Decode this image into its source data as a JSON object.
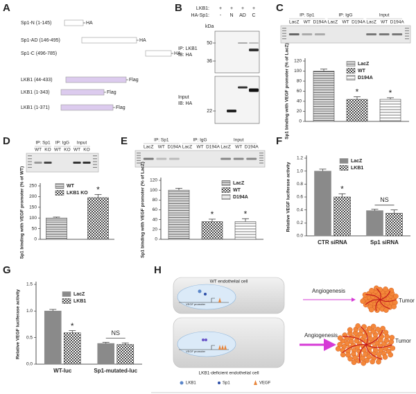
{
  "panel_labels": [
    "A",
    "B",
    "C",
    "D",
    "E",
    "F",
    "G",
    "H"
  ],
  "panel_a": {
    "constructs": [
      {
        "label": "Sp1-N (1-145)",
        "tag": "HA"
      },
      {
        "label": "Sp1-AD (146-495)",
        "tag": "HA"
      },
      {
        "label": "Sp1-C (496-785)",
        "tag": "HA"
      },
      {
        "label": "LKB1 (44-433)",
        "tag": "Flag"
      },
      {
        "label": "LKB1 (1-343)",
        "tag": "Flag"
      },
      {
        "label": "LKB1 (1-371)",
        "tag": "Flag"
      }
    ]
  },
  "panel_b": {
    "row1_label": "LKB1:",
    "row1": [
      "+",
      "+",
      "+",
      "+"
    ],
    "row2_label": "HA-Sp1:",
    "row2": [
      "-",
      "N",
      "AD",
      "C"
    ],
    "kda": "kDa",
    "top_markers": [
      50,
      36
    ],
    "top_label": [
      "IP: LKB1",
      "IB: HA"
    ],
    "bottom_markers": [
      22
    ],
    "bottom_label": [
      "Input",
      "IB: HA"
    ]
  },
  "gel_c": {
    "headers": [
      "IP: Sp1",
      "IP: IgG",
      "Input"
    ],
    "lanes": [
      "LacZ",
      "WT",
      "D194A",
      "LacZ",
      "WT",
      "D194A",
      "LacZ",
      "WT",
      "D194A"
    ]
  },
  "gel_d": {
    "headers": [
      "IP: Sp1",
      "IP: IgG",
      "Input"
    ],
    "lanes": [
      "WT",
      "KO",
      "WT",
      "KO",
      "WT",
      "KO"
    ]
  },
  "gel_e": {
    "headers": [
      "IP: Sp1",
      "IP: IgG",
      "Input"
    ],
    "lanes": [
      "LacZ",
      "WT",
      "D194A",
      "LacZ",
      "WT",
      "D194A",
      "LacZ",
      "WT",
      "D194A"
    ]
  },
  "panel_h": {
    "cell1": "WT endothelial cell",
    "cell2": "LKB1-deficient endothelial cell",
    "promoter": "VEGF promoter",
    "arrow": "Angiogenesis",
    "tumor": "Tumor",
    "legend": [
      "LKB1",
      "Sp1",
      "VEGF"
    ]
  },
  "chart_data": [
    {
      "type": "bar",
      "ylabel": "Sp1 binding with VEGF promoter (% of LacZ)",
      "categories": [
        null
      ],
      "series": [
        {
          "name": "LacZ",
          "color": "#444444",
          "pattern": "hlines",
          "values": [
            100
          ],
          "errors": [
            4
          ]
        },
        {
          "name": "WT",
          "color": "#444444",
          "pattern": "checker",
          "values": [
            44
          ],
          "errors": [
            5
          ],
          "significance": [
            "*"
          ]
        },
        {
          "name": "D194A",
          "color": "#444444",
          "pattern": "stripes",
          "values": [
            44
          ],
          "errors": [
            3
          ],
          "significance": [
            "*"
          ]
        }
      ],
      "ylim": [
        0,
        120
      ],
      "yticks": [
        0,
        20,
        40,
        60,
        80,
        100,
        120
      ],
      "legend": "upper right"
    },
    {
      "type": "bar",
      "ylabel": "Sp1 binding with VEGF promoter (% of WT)",
      "categories": [
        null
      ],
      "series": [
        {
          "name": "WT",
          "color": "#444444",
          "pattern": "hlines",
          "values": [
            100
          ],
          "errors": [
            4
          ]
        },
        {
          "name": "LKB1 KO",
          "color": "#444444",
          "pattern": "checker",
          "values": [
            195
          ],
          "errors": [
            15
          ],
          "significance": [
            "*"
          ]
        }
      ],
      "ylim": [
        0,
        250
      ],
      "yticks": [
        0,
        50,
        100,
        150,
        200,
        250
      ],
      "legend": "upper left"
    },
    {
      "type": "bar",
      "ylabel": "Sp1 binding with VEGF promoter (% of LacZ)",
      "categories": [
        null
      ],
      "series": [
        {
          "name": "LacZ",
          "color": "#444444",
          "pattern": "hlines",
          "values": [
            100
          ],
          "errors": [
            4
          ]
        },
        {
          "name": "WT",
          "color": "#444444",
          "pattern": "checker",
          "values": [
            36
          ],
          "errors": [
            5
          ],
          "significance": [
            "*"
          ]
        },
        {
          "name": "D194A",
          "color": "#444444",
          "pattern": "stripes",
          "values": [
            36
          ],
          "errors": [
            6
          ],
          "significance": [
            "*"
          ]
        }
      ],
      "ylim": [
        0,
        120
      ],
      "yticks": [
        0,
        20,
        40,
        60,
        80,
        100,
        120
      ],
      "legend": "upper right"
    },
    {
      "type": "bar",
      "ylabel": "Relative VEGF luciferase activity",
      "categories": [
        "CTR siRNA",
        "Sp1 siRNA"
      ],
      "series": [
        {
          "name": "LacZ",
          "color": "#8a8a8a",
          "pattern": "solid",
          "values": [
            1.0,
            0.39
          ],
          "errors": [
            0.03,
            0.02
          ]
        },
        {
          "name": "LKB1",
          "color": "#444444",
          "pattern": "checker",
          "values": [
            0.6,
            0.35
          ],
          "errors": [
            0.05,
            0.05
          ],
          "significance": [
            "*",
            null
          ]
        }
      ],
      "group_annotations": [
        null,
        "NS"
      ],
      "ylim": [
        0,
        1.2
      ],
      "yticks": [
        {
          "value": 0,
          "label": "0.0"
        },
        0.2,
        0.4,
        0.6,
        0.8,
        {
          "value": 1,
          "label": "1.0"
        },
        1.2
      ],
      "legend": "upper left"
    },
    {
      "type": "bar",
      "ylabel": "Relative VEGF luciferase activity",
      "categories": [
        "WT-luc",
        "Sp1-mutated-luc"
      ],
      "series": [
        {
          "name": "LacZ",
          "color": "#8a8a8a",
          "pattern": "solid",
          "values": [
            1.0,
            0.39
          ],
          "errors": [
            0.03,
            0.02
          ]
        },
        {
          "name": "LKB1",
          "color": "#444444",
          "pattern": "checker",
          "values": [
            0.59,
            0.37
          ],
          "errors": [
            0.04,
            0.03
          ],
          "significance": [
            "*",
            null
          ]
        }
      ],
      "group_annotations": [
        null,
        "NS"
      ],
      "ylim": [
        0,
        1.5
      ],
      "yticks": [
        {
          "value": 0,
          "label": "0.0"
        },
        0.5,
        {
          "value": 1,
          "label": "1.0"
        },
        1.5
      ],
      "legend": "upper left"
    }
  ]
}
